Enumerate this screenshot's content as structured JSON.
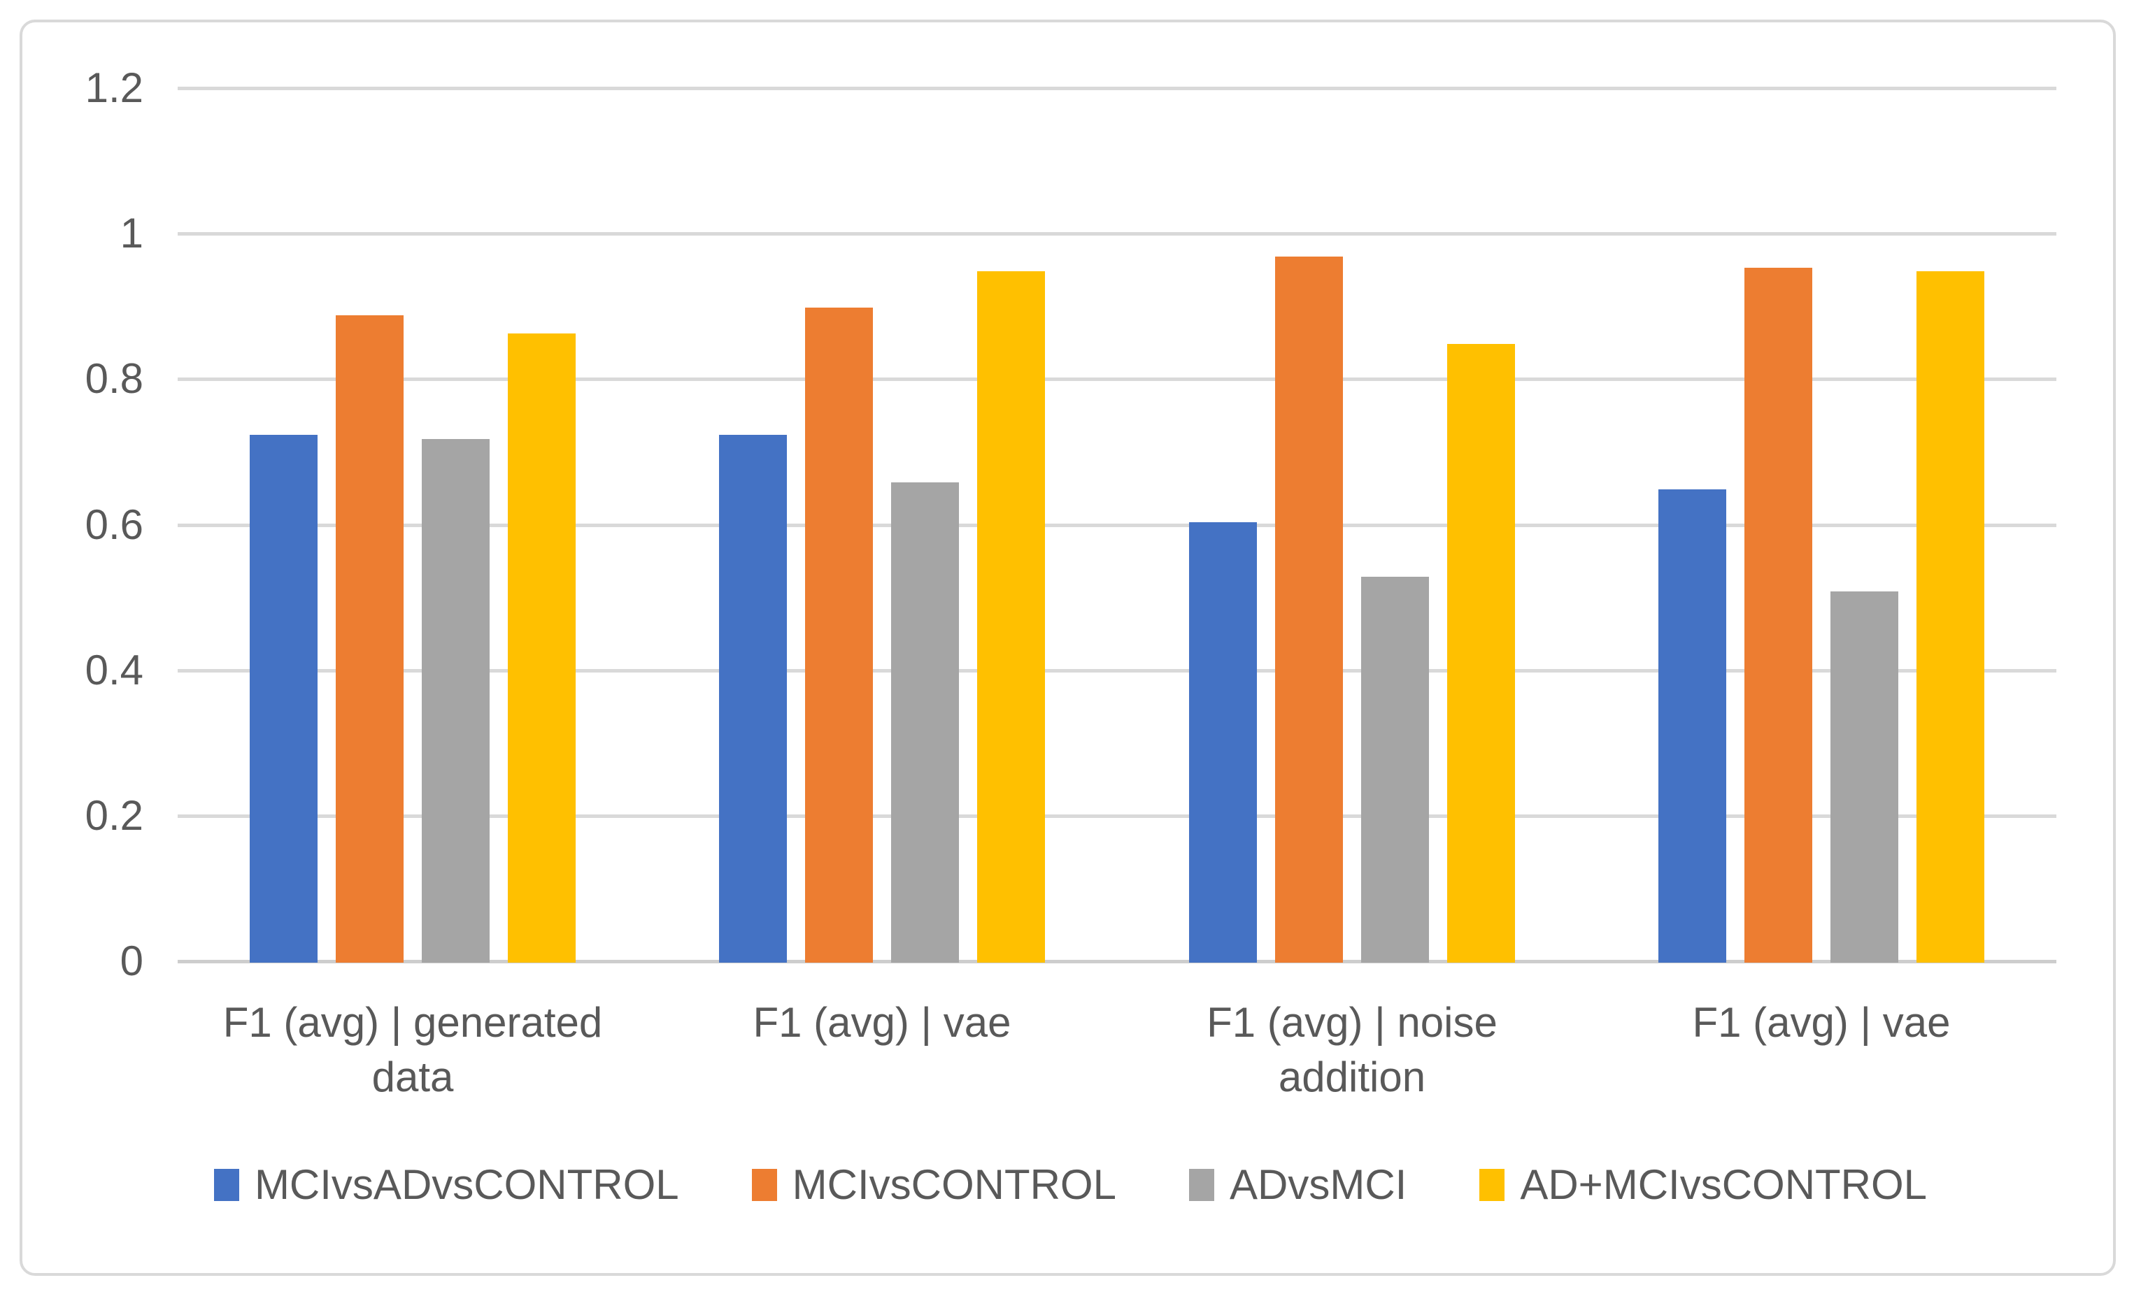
{
  "chart": {
    "background_color": "#FFFFFF",
    "border_color": "#D9D9D9",
    "gridline_color": "#D9D9D9",
    "axis_line_color": "#CDCDCD",
    "text_color": "#595959"
  },
  "chart_data": {
    "type": "bar",
    "title": "",
    "xlabel": "",
    "ylabel": "",
    "categories": [
      "F1 (avg) | generated data",
      "F1 (avg) | vae",
      "F1 (avg) | noise addition",
      "F1 (avg) | vae"
    ],
    "category_lines": [
      [
        "F1 (avg) | generated",
        "data"
      ],
      [
        "F1 (avg) | vae"
      ],
      [
        "F1 (avg) | noise",
        "addition"
      ],
      [
        "F1 (avg) | vae"
      ]
    ],
    "series": [
      {
        "name": "MCIvsADvsCONTROL",
        "color": "#4472C4",
        "values": [
          0.725,
          0.725,
          0.605,
          0.65
        ]
      },
      {
        "name": "MCIvsCONTROL",
        "color": "#ED7D31",
        "values": [
          0.89,
          0.9,
          0.97,
          0.955
        ]
      },
      {
        "name": "ADvsMCI",
        "color": "#A5A5A5",
        "values": [
          0.72,
          0.66,
          0.53,
          0.51
        ]
      },
      {
        "name": "AD+MCIvsCONTROL",
        "color": "#FFC000",
        "values": [
          0.865,
          0.95,
          0.85,
          0.95
        ]
      }
    ],
    "y_axis": {
      "min": 0,
      "max": 1.2,
      "step": 0.2,
      "tick_labels": [
        "0",
        "0.2",
        "0.4",
        "0.6",
        "0.8",
        "1",
        "1.2"
      ]
    },
    "grid": true,
    "legend_position": "bottom"
  }
}
